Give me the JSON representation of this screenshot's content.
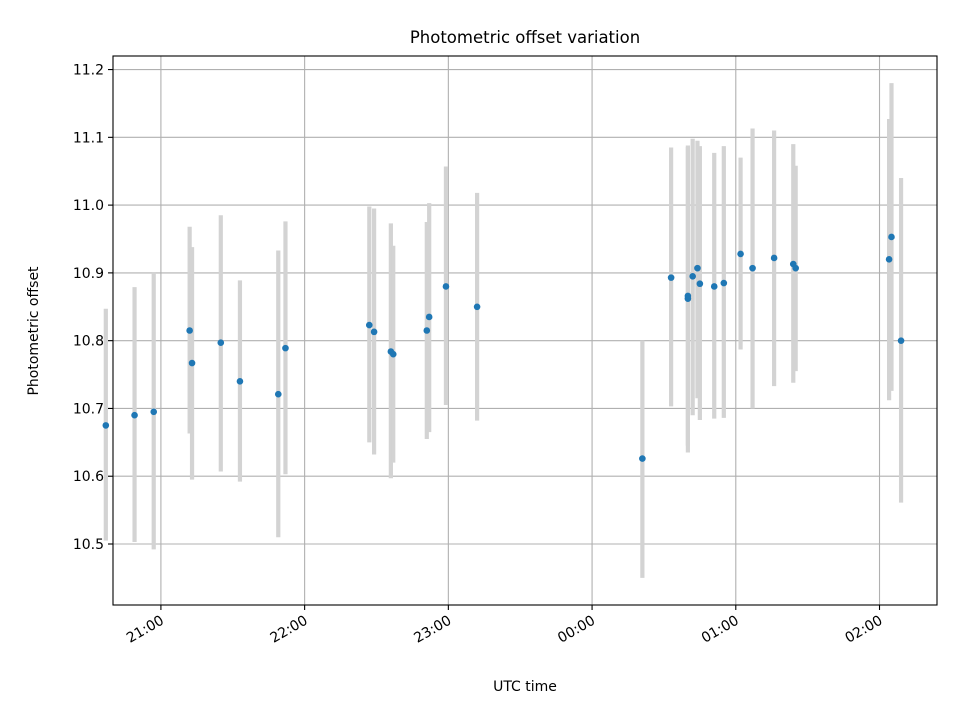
{
  "chart_data": {
    "type": "scatter",
    "title": "Photometric offset variation",
    "xlabel": "UTC time",
    "ylabel": "Photometric offset",
    "x_unit": "UTC time of day, wrapping past midnight",
    "xlim": [
      "20:40",
      "02:24"
    ],
    "ylim": [
      10.41,
      11.22
    ],
    "x_ticks": [
      "21:00",
      "22:00",
      "23:00",
      "00:00",
      "01:00",
      "02:00"
    ],
    "y_ticks": [
      "10.5",
      "10.6",
      "10.7",
      "10.8",
      "10.9",
      "11.0",
      "11.1",
      "11.2"
    ],
    "grid": true,
    "legend": "none",
    "colors": {
      "point": "#1f77b4",
      "errorbar": "#d3d3d3",
      "grid": "#b0b0b0"
    },
    "series": [
      {
        "points": [
          {
            "x": "20:37",
            "y": 10.675,
            "ylow": 10.505,
            "yhigh": 10.847
          },
          {
            "x": "20:49",
            "y": 10.69,
            "ylow": 10.503,
            "yhigh": 10.879
          },
          {
            "x": "20:57",
            "y": 10.695,
            "ylow": 10.492,
            "yhigh": 10.9
          },
          {
            "x": "21:12",
            "y": 10.815,
            "ylow": 10.663,
            "yhigh": 10.968
          },
          {
            "x": "21:13",
            "y": 10.767,
            "ylow": 10.595,
            "yhigh": 10.938
          },
          {
            "x": "21:25",
            "y": 10.797,
            "ylow": 10.607,
            "yhigh": 10.985
          },
          {
            "x": "21:33",
            "y": 10.74,
            "ylow": 10.592,
            "yhigh": 10.889
          },
          {
            "x": "21:49",
            "y": 10.721,
            "ylow": 10.51,
            "yhigh": 10.933
          },
          {
            "x": "21:52",
            "y": 10.789,
            "ylow": 10.603,
            "yhigh": 10.976
          },
          {
            "x": "22:27",
            "y": 10.823,
            "ylow": 10.65,
            "yhigh": 10.998
          },
          {
            "x": "22:29",
            "y": 10.813,
            "ylow": 10.632,
            "yhigh": 10.995
          },
          {
            "x": "22:36",
            "y": 10.784,
            "ylow": 10.597,
            "yhigh": 10.973
          },
          {
            "x": "22:37",
            "y": 10.78,
            "ylow": 10.62,
            "yhigh": 10.94
          },
          {
            "x": "22:51",
            "y": 10.815,
            "ylow": 10.655,
            "yhigh": 10.975
          },
          {
            "x": "22:52",
            "y": 10.835,
            "ylow": 10.665,
            "yhigh": 11.003
          },
          {
            "x": "22:59",
            "y": 10.88,
            "ylow": 10.705,
            "yhigh": 11.057
          },
          {
            "x": "23:12",
            "y": 10.85,
            "ylow": 10.682,
            "yhigh": 11.018
          },
          {
            "x": "00:21",
            "y": 10.626,
            "ylow": 10.45,
            "yhigh": 10.8
          },
          {
            "x": "00:33",
            "y": 10.893,
            "ylow": 10.703,
            "yhigh": 11.085
          },
          {
            "x": "00:40",
            "y": 10.862,
            "ylow": 10.635,
            "yhigh": 11.086
          },
          {
            "x": "00:40",
            "y": 10.866,
            "ylow": 10.645,
            "yhigh": 11.088
          },
          {
            "x": "00:42",
            "y": 10.895,
            "ylow": 10.69,
            "yhigh": 11.098
          },
          {
            "x": "00:44",
            "y": 10.907,
            "ylow": 10.715,
            "yhigh": 11.095
          },
          {
            "x": "00:45",
            "y": 10.884,
            "ylow": 10.683,
            "yhigh": 11.087
          },
          {
            "x": "00:51",
            "y": 10.88,
            "ylow": 10.685,
            "yhigh": 11.077
          },
          {
            "x": "00:55",
            "y": 10.885,
            "ylow": 10.686,
            "yhigh": 11.087
          },
          {
            "x": "01:02",
            "y": 10.928,
            "ylow": 10.787,
            "yhigh": 11.07
          },
          {
            "x": "01:07",
            "y": 10.907,
            "ylow": 10.7,
            "yhigh": 11.113
          },
          {
            "x": "01:16",
            "y": 10.922,
            "ylow": 10.733,
            "yhigh": 11.11
          },
          {
            "x": "01:24",
            "y": 10.913,
            "ylow": 10.738,
            "yhigh": 11.09
          },
          {
            "x": "01:25",
            "y": 10.907,
            "ylow": 10.755,
            "yhigh": 11.058
          },
          {
            "x": "02:04",
            "y": 10.92,
            "ylow": 10.712,
            "yhigh": 11.127
          },
          {
            "x": "02:05",
            "y": 10.953,
            "ylow": 10.726,
            "yhigh": 11.18
          },
          {
            "x": "02:09",
            "y": 10.8,
            "ylow": 10.561,
            "yhigh": 11.04
          }
        ]
      }
    ]
  }
}
